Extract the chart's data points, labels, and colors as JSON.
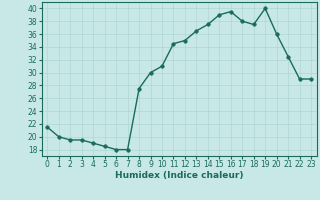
{
  "x": [
    0,
    1,
    2,
    3,
    4,
    5,
    6,
    7,
    8,
    9,
    10,
    11,
    12,
    13,
    14,
    15,
    16,
    17,
    18,
    19,
    20,
    21,
    22,
    23
  ],
  "y": [
    21.5,
    20.0,
    19.5,
    19.5,
    19.0,
    18.5,
    18.0,
    18.0,
    27.5,
    30.0,
    31.0,
    34.5,
    35.0,
    36.5,
    37.5,
    39.0,
    39.5,
    38.0,
    37.5,
    40.0,
    36.0,
    32.5,
    29.0,
    29.0
  ],
  "line_color": "#1a6b5a",
  "marker": "o",
  "marker_size": 2.5,
  "bg_color": "#c8e8e8",
  "grid_color": "#b0d4d4",
  "xlabel": "Humidex (Indice chaleur)",
  "xlim": [
    -0.5,
    23.5
  ],
  "ylim": [
    17,
    41
  ],
  "yticks": [
    18,
    20,
    22,
    24,
    26,
    28,
    30,
    32,
    34,
    36,
    38,
    40
  ],
  "xticks": [
    0,
    1,
    2,
    3,
    4,
    5,
    6,
    7,
    8,
    9,
    10,
    11,
    12,
    13,
    14,
    15,
    16,
    17,
    18,
    19,
    20,
    21,
    22,
    23
  ],
  "label_fontsize": 6.5,
  "tick_fontsize": 5.5
}
